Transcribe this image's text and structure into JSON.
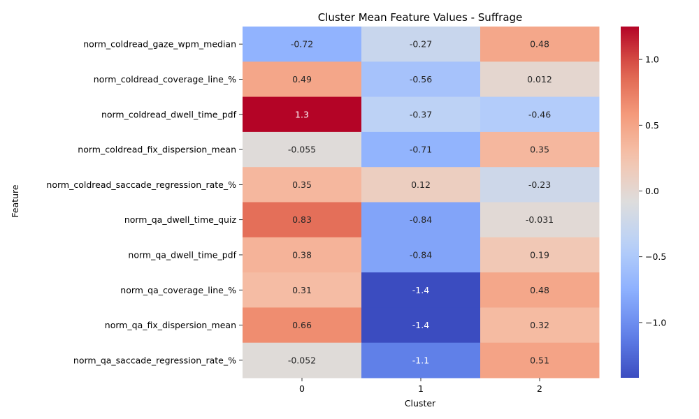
{
  "chart_data": {
    "type": "heatmap",
    "title": "Cluster Mean Feature Values - Suffrage",
    "xlabel": "Cluster",
    "ylabel": "Feature",
    "x_categories": [
      "0",
      "1",
      "2"
    ],
    "y_categories": [
      "norm_coldread_gaze_wpm_median",
      "norm_coldread_coverage_line_%",
      "norm_coldread_dwell_time_pdf",
      "norm_coldread_fix_dispersion_mean",
      "norm_coldread_saccade_regression_rate_%",
      "norm_qa_dwell_time_quiz",
      "norm_qa_dwell_time_pdf",
      "norm_qa_coverage_line_%",
      "norm_qa_fix_dispersion_mean",
      "norm_qa_saccade_regression_rate_%"
    ],
    "values": [
      [
        -0.72,
        -0.27,
        0.48
      ],
      [
        0.49,
        -0.56,
        0.012
      ],
      [
        1.25,
        -0.37,
        -0.46
      ],
      [
        -0.055,
        -0.71,
        0.35
      ],
      [
        0.35,
        0.12,
        -0.23
      ],
      [
        0.83,
        -0.84,
        -0.031
      ],
      [
        0.38,
        -0.84,
        0.19
      ],
      [
        0.31,
        -1.42,
        0.48
      ],
      [
        0.66,
        -1.42,
        0.32
      ],
      [
        -0.052,
        -1.1,
        0.51
      ]
    ],
    "annotations": [
      [
        "-0.72",
        "-0.27",
        "0.48"
      ],
      [
        "0.49",
        "-0.56",
        "0.012"
      ],
      [
        "1.3",
        "-0.37",
        "-0.46"
      ],
      [
        "-0.055",
        "-0.71",
        "0.35"
      ],
      [
        "0.35",
        "0.12",
        "-0.23"
      ],
      [
        "0.83",
        "-0.84",
        "-0.031"
      ],
      [
        "0.38",
        "-0.84",
        "0.19"
      ],
      [
        "0.31",
        "-1.4",
        "0.48"
      ],
      [
        "0.66",
        "-1.4",
        "0.32"
      ],
      [
        "-0.052",
        "-1.1",
        "0.51"
      ]
    ],
    "colormap": "coolwarm",
    "vmin": -1.42,
    "vmax": 1.25,
    "colorbar_ticks": [
      1.0,
      0.5,
      0.0,
      -0.5,
      -1.0
    ],
    "colorbar_tick_labels": [
      "1.0",
      "0.5",
      "0.0",
      "−0.5",
      "−1.0"
    ],
    "grid": false,
    "legend": "colorbar-right"
  }
}
